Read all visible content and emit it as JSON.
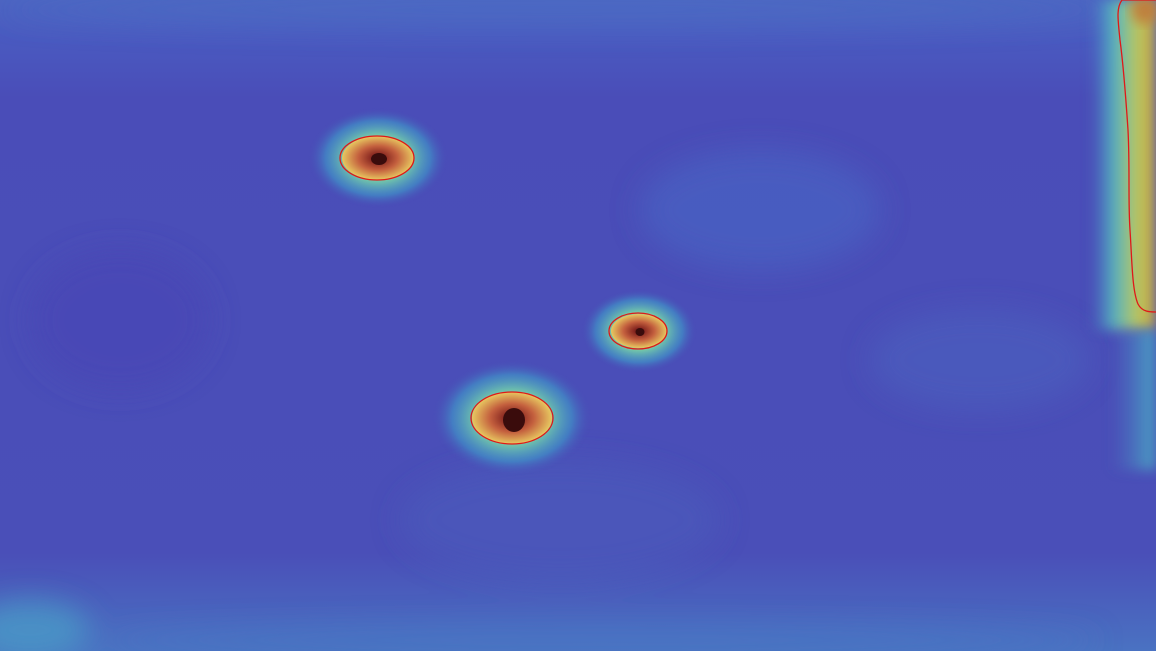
{
  "scene": {
    "kind": "anomaly-heatmap-overlay",
    "colormap": [
      "#4349b8",
      "#4a66c0",
      "#3fa6c8",
      "#52d2b4",
      "#b8d96a",
      "#e8c35a",
      "#d77a4a",
      "#b43a2e",
      "#5a1414"
    ],
    "contour_color": "#e01818",
    "background_color": "#4a4fb8",
    "defect_count": 3
  }
}
